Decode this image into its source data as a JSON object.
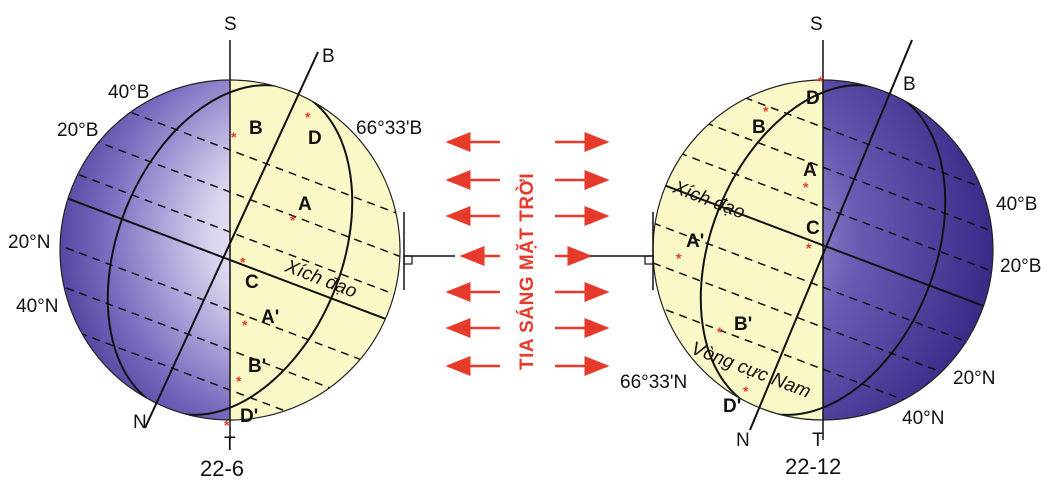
{
  "sun_rays_label": "TIA SÁNG MẶT TRỜI",
  "left_globe": {
    "date": "22-6",
    "pole_top": "S",
    "pole_bottom": "T",
    "axis_north": "B",
    "axis_south": "N",
    "lat_40B": "40°B",
    "lat_20B": "20°B",
    "lat_20N": "20°N",
    "lat_40N": "40°N",
    "arctic": "66°33'B",
    "equator": "Xích đạo",
    "points": [
      "B",
      "D",
      "A",
      "C",
      "A'",
      "B'",
      "D'"
    ]
  },
  "right_globe": {
    "date": "22-12",
    "pole_top": "S",
    "pole_bottom": "T",
    "axis_north": "B",
    "axis_south": "N",
    "lat_40B": "40°B",
    "lat_20B": "20°B",
    "lat_20N": "20°N",
    "lat_40N": "40°N",
    "antarctic": "66°33'N",
    "antarctic_name": "Vòng cực Nam",
    "equator": "Xích đạo",
    "points": [
      "D",
      "B",
      "A",
      "C",
      "A'",
      "B'",
      "D'"
    ]
  },
  "colors": {
    "day": "#fbf8c8",
    "night": "#5a4aa8",
    "ray": "#e63a2a"
  }
}
